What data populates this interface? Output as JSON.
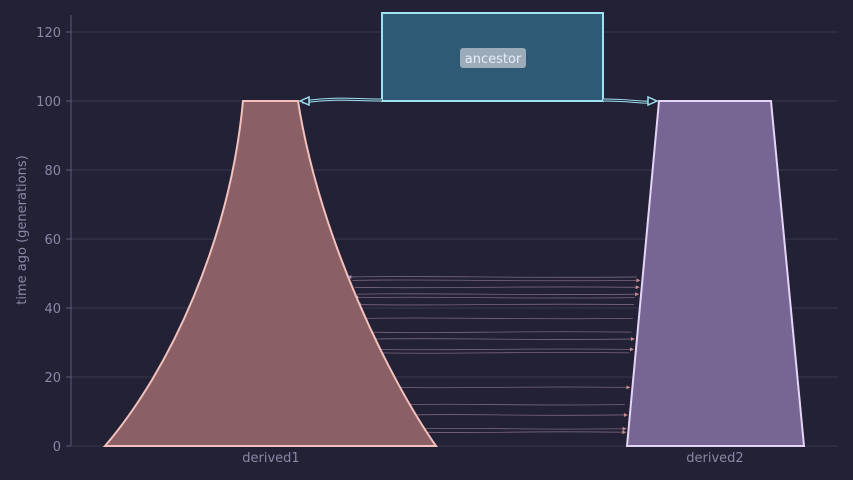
{
  "axes": {
    "ylabel": "time ago (generations)",
    "yticks": [
      "0",
      "20",
      "40",
      "60",
      "80",
      "100",
      "120"
    ]
  },
  "demes": {
    "ancestor": {
      "label": "ancestor",
      "start_time": "inf",
      "end_time": 100,
      "fill": "#2f5a76",
      "edge": "#9fe3f3"
    },
    "derived1": {
      "label": "derived1",
      "start_time": 100,
      "end_time": 0,
      "fill": "#8a5f66",
      "edge": "#f3c0bc"
    },
    "derived2": {
      "label": "derived2",
      "start_time": 100,
      "end_time": 0,
      "fill": "#776594",
      "edge": "#e4d4f5"
    }
  },
  "colors": {
    "background": "#222135",
    "grid": "#3a3850",
    "text": "#8b87a6",
    "migration": "#9a7f96"
  },
  "migrations": {
    "derived1_to_derived2_times": [
      44,
      46,
      5,
      17,
      9,
      28,
      31,
      4,
      48
    ],
    "derived2_to_derived1_times": [
      49,
      27,
      12,
      33,
      37,
      41,
      43
    ]
  }
}
